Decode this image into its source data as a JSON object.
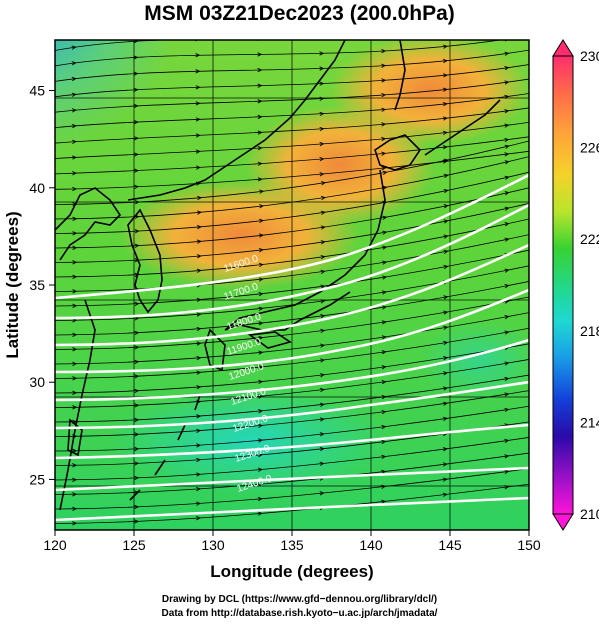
{
  "title": "MSM 03Z21Dec2023 (200.0hPa)",
  "chart_data": {
    "type": "map",
    "title": "MSM 03Z21Dec2023 (200.0hPa)",
    "xlabel": "Longitude (degrees)",
    "ylabel": "Latitude  (degrees)",
    "xlim": [
      120,
      150
    ],
    "ylim": [
      22.4,
      47.6
    ],
    "x_ticks": [
      "120",
      "125",
      "130",
      "135",
      "140",
      "145",
      "150"
    ],
    "y_ticks": [
      "25",
      "30",
      "35",
      "40",
      "45"
    ],
    "colorbar": {
      "range": [
        210,
        230
      ],
      "tick_labels": [
        "230",
        "226",
        "222",
        "218",
        "214",
        "210"
      ],
      "colors": [
        "#ff2d6f",
        "#ff6a4a",
        "#ffa43a",
        "#f5d22a",
        "#b8e52b",
        "#38d232",
        "#20d89a",
        "#1fd8d2",
        "#1a9be8",
        "#1340d8",
        "#2a0aa8",
        "#9a10c8",
        "#ff14d8"
      ]
    },
    "contour_labels": [
      "11600.0",
      "11700.0",
      "11800.0",
      "11900.0",
      "12000.0",
      "12100.0",
      "12200.0",
      "12300.0",
      "12400.0"
    ],
    "warm_core_lon_lat": [
      [
        131,
        37.5
      ],
      [
        138,
        42
      ],
      [
        144,
        45
      ]
    ],
    "cold_corner_lon_lat": [
      121,
      47
    ]
  },
  "credits": {
    "line1": "Drawing by DCL (https://www.gfd−dennou.org/library/dcl/)",
    "line2": "Data from http://database.rish.kyoto−u.ac.jp/arch/jmadata/"
  }
}
